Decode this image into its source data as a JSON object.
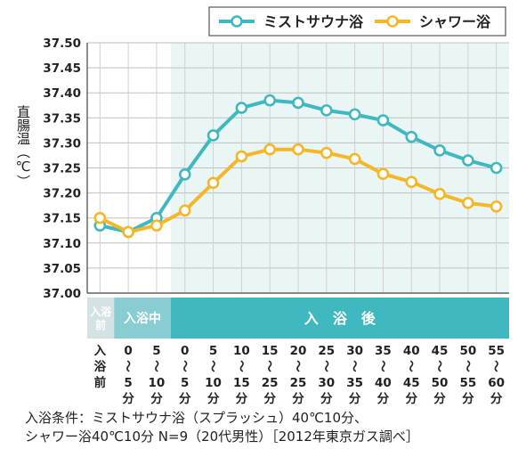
{
  "chart_data": {
    "type": "line",
    "ylabel": "直腸温（℃）",
    "ylim": [
      37.0,
      37.5
    ],
    "y_ticks": [
      "37.50",
      "37.45",
      "37.40",
      "37.35",
      "37.30",
      "37.25",
      "37.20",
      "37.15",
      "37.10",
      "37.05",
      "37.00"
    ],
    "x": [
      "入浴前",
      "0〜5分",
      "5〜10分",
      "0〜5分",
      "5〜10分",
      "10〜15分",
      "15〜25分",
      "20〜25分",
      "25〜30分",
      "30〜35分",
      "35〜40分",
      "40〜45分",
      "45〜50分",
      "50〜55分",
      "55〜60分"
    ],
    "x_labels": [
      [
        "入",
        "浴",
        "前"
      ],
      [
        "0",
        "〜",
        "5",
        "分"
      ],
      [
        "5",
        "〜",
        "10",
        "分"
      ],
      [
        "0",
        "〜",
        "5",
        "分"
      ],
      [
        "5",
        "〜",
        "10",
        "分"
      ],
      [
        "10",
        "〜",
        "15",
        "分"
      ],
      [
        "15",
        "〜",
        "25",
        "分"
      ],
      [
        "20",
        "〜",
        "25",
        "分"
      ],
      [
        "25",
        "〜",
        "30",
        "分"
      ],
      [
        "30",
        "〜",
        "35",
        "分"
      ],
      [
        "35",
        "〜",
        "40",
        "分"
      ],
      [
        "40",
        "〜",
        "45",
        "分"
      ],
      [
        "45",
        "〜",
        "50",
        "分"
      ],
      [
        "50",
        "〜",
        "55",
        "分"
      ],
      [
        "55",
        "〜",
        "60",
        "分"
      ]
    ],
    "series": [
      {
        "name": "ミストサウナ浴",
        "color": "#3fb8bf",
        "values": [
          37.135,
          37.122,
          37.15,
          37.237,
          37.315,
          37.37,
          37.385,
          37.38,
          37.365,
          37.357,
          37.345,
          37.312,
          37.285,
          37.265,
          37.25
        ]
      },
      {
        "name": "シャワー浴",
        "color": "#f5b628",
        "values": [
          37.15,
          37.122,
          37.135,
          37.165,
          37.22,
          37.273,
          37.287,
          37.287,
          37.28,
          37.268,
          37.238,
          37.222,
          37.198,
          37.18,
          37.173
        ]
      }
    ],
    "phases": [
      {
        "label": "入浴前",
        "chars": [
          "入浴",
          "前"
        ],
        "start": 0,
        "end": 0,
        "fill": "#d5e2e3",
        "text_color": "#ffffff",
        "text_size": 12
      },
      {
        "label": "入浴中",
        "chars": [
          "入浴中"
        ],
        "start": 1,
        "end": 2,
        "fill": "#87cdd2",
        "text_color": "#ffffff",
        "text_size": 14
      },
      {
        "label": "入 浴 後",
        "chars": [
          "入　浴　後"
        ],
        "start": 3,
        "end": 14,
        "fill": "#3fb8bf",
        "text_color": "#ffffff",
        "text_size": 16
      }
    ],
    "legend_position": "top-right",
    "grid": true
  },
  "conditions": {
    "line1": "入浴条件：ミストサウナ浴（スプラッシュ）40℃10分、",
    "line2": "シャワー浴40℃10分 N=9（20代男性）［2012年東京ガス調べ］"
  }
}
